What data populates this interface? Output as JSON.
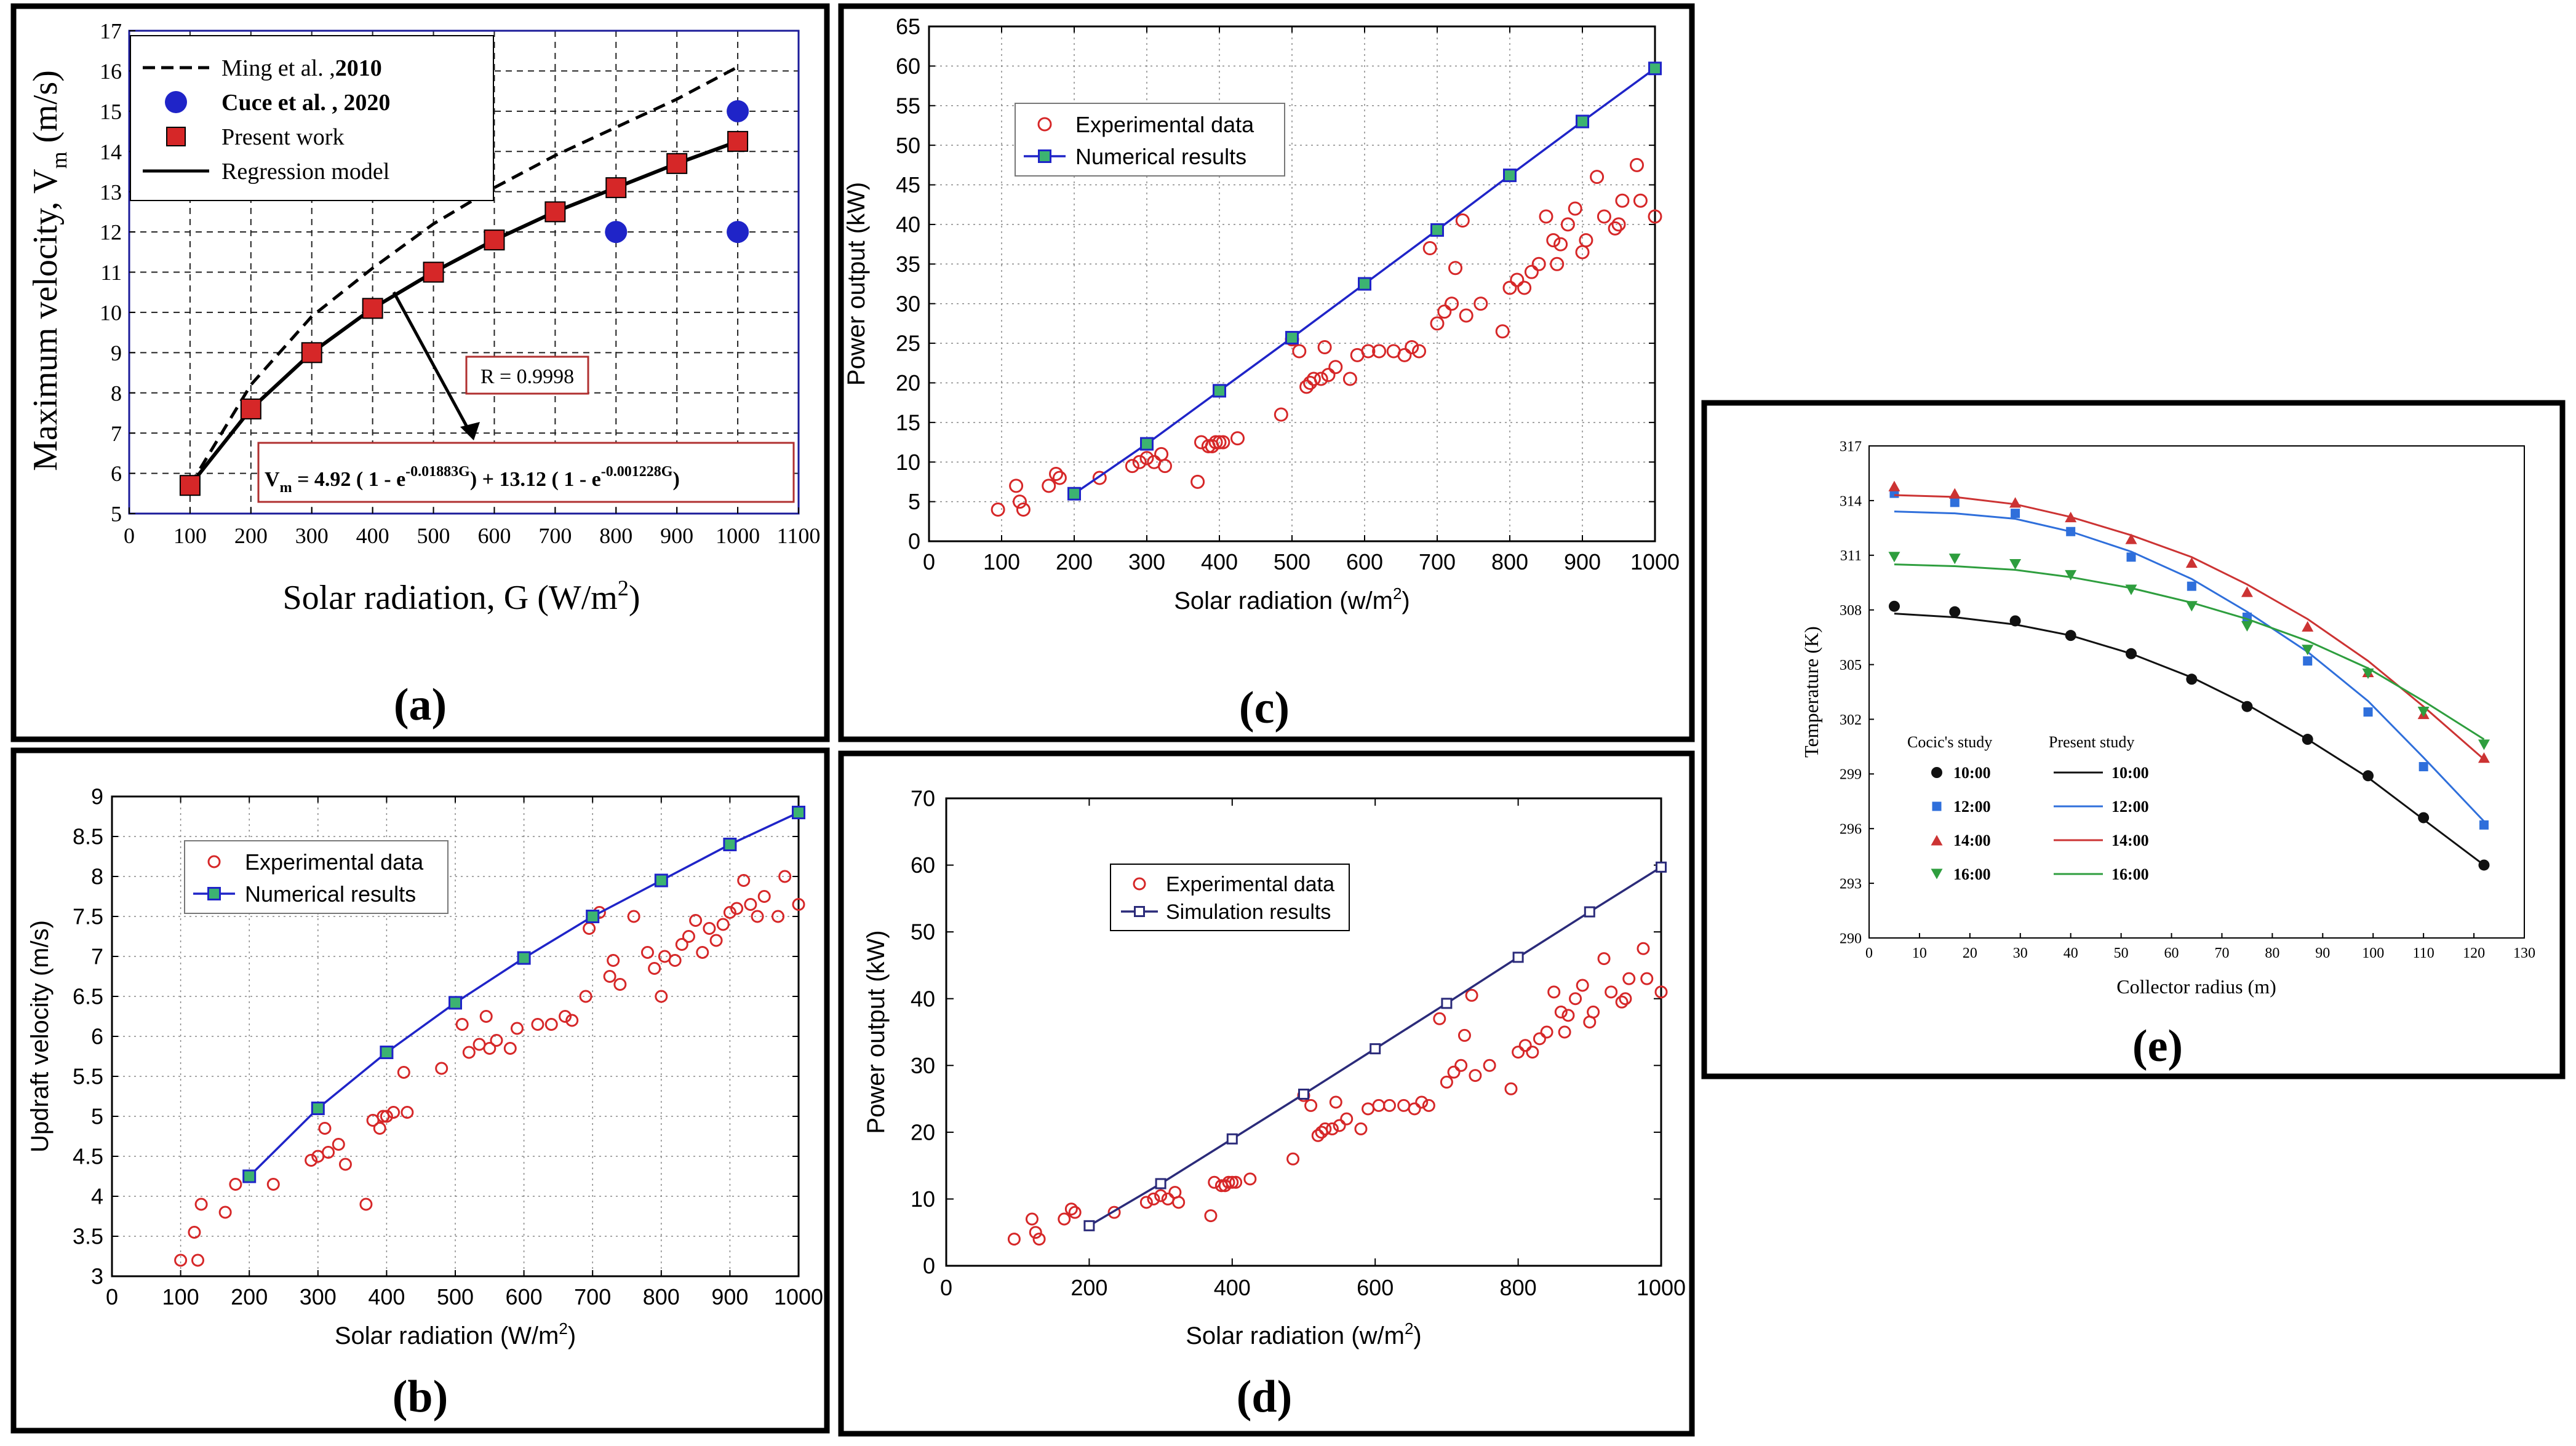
{
  "colors": {
    "red": "#d62728",
    "blue": "#1f24c8",
    "green_fill": "#3cb371",
    "navy": "#2b2b7a",
    "e_red": "#cc3333",
    "e_blue": "#2f6fdb",
    "e_green": "#2e9e3e",
    "e_black": "#111111"
  },
  "chart_data": [
    {
      "id": "a",
      "type": "line",
      "panel_label": "(a)",
      "xlabel": "Solar radiation, G (W/m",
      "xlabel_sup": "2",
      "xlabel_end": ")",
      "ylabel": "Maximum velocity, V",
      "ylabel_sub": "m",
      "ylabel_end": " (m/s)",
      "xlim": [
        0,
        1100
      ],
      "ylim": [
        5,
        17
      ],
      "xticks": [
        "0",
        "100",
        "200",
        "300",
        "400",
        "500",
        "600",
        "700",
        "800",
        "900",
        "1000",
        "1100"
      ],
      "yticks": [
        "5",
        "6",
        "7",
        "8",
        "9",
        "10",
        "11",
        "12",
        "13",
        "14",
        "15",
        "16",
        "17"
      ],
      "grid": true,
      "legend": [
        {
          "label": "Ming et al. ,",
          "bold": "2010",
          "kind": "dashed-line"
        },
        {
          "label": "Cuce et al. , 2020",
          "bold": "",
          "kind": "blue-circle"
        },
        {
          "label": "Present work",
          "bold": "",
          "kind": "red-square"
        },
        {
          "label": "Regression model",
          "bold": "",
          "kind": "solid-line"
        }
      ],
      "series": [
        {
          "name": "Ming et al. ,2010",
          "x": [
            100,
            200,
            300,
            400,
            500,
            600,
            700,
            800,
            900,
            1000
          ],
          "y": [
            5.7,
            8.2,
            9.9,
            11.1,
            12.2,
            13.1,
            13.9,
            14.6,
            15.3,
            16.1
          ]
        },
        {
          "name": "Cuce et al. , 2020",
          "x": [
            800,
            1000,
            1000
          ],
          "y": [
            12.0,
            12.0,
            15.0
          ]
        },
        {
          "name": "Present work",
          "x": [
            100,
            200,
            300,
            400,
            500,
            600,
            700,
            800,
            900,
            1000
          ],
          "y": [
            5.7,
            7.6,
            9.0,
            10.1,
            11.0,
            11.8,
            12.5,
            13.1,
            13.7,
            14.25
          ]
        },
        {
          "name": "Regression model",
          "x": [
            100,
            200,
            300,
            400,
            500,
            600,
            700,
            800,
            900,
            1000
          ],
          "y": [
            5.7,
            7.6,
            9.0,
            10.1,
            11.0,
            11.8,
            12.5,
            13.1,
            13.7,
            14.25
          ]
        }
      ],
      "annotations": {
        "r_value": "R = 0.9998",
        "eq_vm": "V",
        "eq_vm_sub": "m",
        "eq_part1": " = 4.92 ( 1 - e",
        "eq_exp1": "-0.01883G",
        "eq_part2": ") + 13.12 ( 1 - e",
        "eq_exp2": "-0.001228G",
        "eq_part3": ")"
      }
    },
    {
      "id": "b",
      "type": "scatter",
      "panel_label": "(b)",
      "xlabel": "Solar radiation (W/m",
      "xlabel_sup": "2",
      "xlabel_end": ")",
      "ylabel": "Updraft velocity (m/s)",
      "xlim": [
        0,
        1000
      ],
      "ylim": [
        3,
        9
      ],
      "xticks": [
        "0",
        "100",
        "200",
        "300",
        "400",
        "500",
        "600",
        "700",
        "800",
        "900",
        "1000"
      ],
      "yticks": [
        "3",
        "3.5",
        "4",
        "4.5",
        "5",
        "5.5",
        "6",
        "6.5",
        "7",
        "7.5",
        "8",
        "8.5",
        "9"
      ],
      "grid": true,
      "legend": [
        {
          "label": "Experimental data",
          "kind": "red-circle"
        },
        {
          "label": "Numerical results",
          "kind": "blue-line-green-square"
        }
      ],
      "series": [
        {
          "name": "Experimental data",
          "x": [
            100,
            125,
            120,
            130,
            165,
            180,
            235,
            290,
            300,
            310,
            315,
            330,
            340,
            370,
            380,
            390,
            395,
            400,
            410,
            425,
            430,
            480,
            510,
            520,
            535,
            545,
            550,
            560,
            580,
            590,
            620,
            640,
            660,
            670,
            690,
            695,
            710,
            725,
            730,
            740,
            760,
            780,
            790,
            800,
            805,
            820,
            830,
            840,
            850,
            860,
            870,
            880,
            890,
            900,
            910,
            920,
            930,
            940,
            950,
            970,
            980,
            1000
          ],
          "y": [
            3.2,
            3.2,
            3.55,
            3.9,
            3.8,
            4.15,
            4.15,
            4.45,
            4.5,
            4.85,
            4.55,
            4.65,
            4.4,
            3.9,
            4.95,
            4.85,
            5.0,
            5.0,
            5.05,
            5.55,
            5.05,
            5.6,
            6.15,
            5.8,
            5.9,
            6.25,
            5.85,
            5.95,
            5.85,
            6.1,
            6.15,
            6.15,
            6.25,
            6.2,
            6.5,
            7.35,
            7.55,
            6.75,
            6.95,
            6.65,
            7.5,
            7.05,
            6.85,
            6.5,
            7.0,
            6.95,
            7.15,
            7.25,
            7.45,
            7.05,
            7.35,
            7.2,
            7.4,
            7.55,
            7.6,
            7.95,
            7.65,
            7.5,
            7.75,
            7.5,
            8.0,
            7.65
          ]
        },
        {
          "name": "Numerical results",
          "x": [
            200,
            300,
            400,
            500,
            600,
            700,
            800,
            900,
            1000
          ],
          "y": [
            4.25,
            5.1,
            5.8,
            6.42,
            6.98,
            7.5,
            7.95,
            8.4,
            8.8
          ]
        }
      ]
    },
    {
      "id": "c",
      "type": "scatter",
      "panel_label": "(c)",
      "xlabel": "Solar radiation (w/m",
      "xlabel_sup": "2",
      "xlabel_end": ")",
      "ylabel": "Power output (kW)",
      "xlim": [
        0,
        1000
      ],
      "ylim": [
        0,
        65
      ],
      "xticks": [
        "0",
        "100",
        "200",
        "300",
        "400",
        "500",
        "600",
        "700",
        "800",
        "900",
        "1000"
      ],
      "yticks": [
        "0",
        "5",
        "10",
        "15",
        "20",
        "25",
        "30",
        "35",
        "40",
        "45",
        "50",
        "55",
        "60",
        "65"
      ],
      "grid": true,
      "legend": [
        {
          "label": "Experimental data",
          "kind": "red-circle"
        },
        {
          "label": "Numerical results",
          "kind": "blue-line-green-square"
        }
      ],
      "series": [
        {
          "name": "Experimental data",
          "x": [
            95,
            120,
            125,
            130,
            165,
            175,
            180,
            235,
            280,
            290,
            300,
            310,
            320,
            325,
            370,
            375,
            385,
            390,
            395,
            400,
            405,
            425,
            485,
            500,
            510,
            520,
            525,
            530,
            540,
            545,
            550,
            560,
            580,
            590,
            605,
            620,
            640,
            655,
            665,
            675,
            690,
            700,
            710,
            720,
            725,
            735,
            740,
            760,
            790,
            800,
            810,
            820,
            830,
            840,
            850,
            860,
            865,
            870,
            880,
            890,
            900,
            905,
            920,
            930,
            945,
            950,
            955,
            975,
            980,
            1000
          ],
          "y": [
            4,
            7,
            5,
            4,
            7,
            8.5,
            8,
            8,
            9.5,
            10,
            10.5,
            10,
            11,
            9.5,
            7.5,
            12.5,
            12,
            12,
            12.5,
            12.5,
            12.5,
            13,
            16,
            25.5,
            24,
            19.5,
            20,
            20.5,
            20.5,
            24.5,
            21,
            22,
            20.5,
            23.5,
            24,
            24,
            24,
            23.5,
            24.5,
            24,
            37,
            27.5,
            29,
            30,
            34.5,
            40.5,
            28.5,
            30,
            26.5,
            32,
            33,
            32,
            34,
            35,
            41,
            38,
            35,
            37.5,
            40,
            42,
            36.5,
            38,
            46,
            41,
            39.5,
            40,
            43,
            47.5,
            43,
            41
          ]
        },
        {
          "name": "Numerical results",
          "x": [
            200,
            300,
            400,
            500,
            600,
            700,
            800,
            900,
            1000
          ],
          "y": [
            6,
            12.3,
            19,
            25.7,
            32.5,
            39.3,
            46.2,
            53,
            59.7
          ]
        }
      ]
    },
    {
      "id": "d",
      "type": "scatter",
      "panel_label": "(d)",
      "xlabel": "Solar radiation (w/m",
      "xlabel_sup": "2",
      "xlabel_end": ")",
      "ylabel": "Power output (kW)",
      "xlim": [
        0,
        1000
      ],
      "ylim": [
        0,
        70
      ],
      "xticks": [
        "0",
        "200",
        "400",
        "600",
        "800",
        "1000"
      ],
      "yticks": [
        "0",
        "10",
        "20",
        "30",
        "40",
        "50",
        "60",
        "70"
      ],
      "grid": false,
      "legend": [
        {
          "label": "Experimental data",
          "kind": "red-circle"
        },
        {
          "label": "Simulation results",
          "kind": "navy-line-open-square"
        }
      ],
      "series": [
        {
          "name": "Experimental data",
          "x": [
            95,
            120,
            125,
            130,
            165,
            175,
            180,
            235,
            280,
            290,
            300,
            310,
            320,
            325,
            370,
            375,
            385,
            390,
            395,
            400,
            405,
            425,
            485,
            500,
            510,
            520,
            525,
            530,
            540,
            545,
            550,
            560,
            580,
            590,
            605,
            620,
            640,
            655,
            665,
            675,
            690,
            700,
            710,
            720,
            725,
            735,
            740,
            760,
            790,
            800,
            810,
            820,
            830,
            840,
            850,
            860,
            865,
            870,
            880,
            890,
            900,
            905,
            920,
            930,
            945,
            950,
            955,
            975,
            980,
            1000
          ],
          "y": [
            4,
            7,
            5,
            4,
            7,
            8.5,
            8,
            8,
            9.5,
            10,
            10.5,
            10,
            11,
            9.5,
            7.5,
            12.5,
            12,
            12,
            12.5,
            12.5,
            12.5,
            13,
            16,
            25.5,
            24,
            19.5,
            20,
            20.5,
            20.5,
            24.5,
            21,
            22,
            20.5,
            23.5,
            24,
            24,
            24,
            23.5,
            24.5,
            24,
            37,
            27.5,
            29,
            30,
            34.5,
            40.5,
            28.5,
            30,
            26.5,
            32,
            33,
            32,
            34,
            35,
            41,
            38,
            35,
            37.5,
            40,
            42,
            36.5,
            38,
            46,
            41,
            39.5,
            40,
            43,
            47.5,
            43,
            41
          ]
        },
        {
          "name": "Simulation results",
          "x": [
            200,
            300,
            400,
            500,
            600,
            700,
            800,
            900,
            1000
          ],
          "y": [
            6,
            12.3,
            19,
            25.7,
            32.5,
            39.3,
            46.2,
            53,
            59.7
          ]
        }
      ]
    },
    {
      "id": "e",
      "type": "scatter",
      "panel_label": "(e)",
      "xlabel": "Collector radius (m)",
      "ylabel": "Temperature (K)",
      "xlim": [
        0,
        130
      ],
      "ylim": [
        290,
        317
      ],
      "xticks": [
        "0",
        "10",
        "20",
        "30",
        "40",
        "50",
        "60",
        "70",
        "80",
        "90",
        "100",
        "110",
        "120",
        "130"
      ],
      "yticks": [
        "290",
        "293",
        "296",
        "299",
        "302",
        "305",
        "308",
        "311",
        "314",
        "317"
      ],
      "grid": false,
      "legend_headers": [
        "Cocic's study",
        "Present study"
      ],
      "legend": [
        {
          "label": "10:00",
          "kind": "black-circle"
        },
        {
          "label": "12:00",
          "kind": "blue-square"
        },
        {
          "label": "14:00",
          "kind": "red-triangle-up"
        },
        {
          "label": "16:00",
          "kind": "green-triangle-down"
        }
      ],
      "series": [
        {
          "name": "10:00",
          "x": [
            5,
            17,
            29,
            40,
            52,
            64,
            75,
            87,
            99,
            110,
            122
          ],
          "y": [
            308.2,
            307.9,
            307.4,
            306.6,
            305.6,
            304.2,
            302.7,
            300.9,
            298.9,
            296.6,
            294.0
          ],
          "fit_x": [
            5,
            17,
            29,
            40,
            52,
            64,
            75,
            87,
            99,
            110,
            122
          ],
          "fit_y": [
            307.8,
            307.6,
            307.2,
            306.6,
            305.6,
            304.3,
            302.8,
            300.9,
            298.8,
            296.5,
            294.0
          ]
        },
        {
          "name": "12:00",
          "x": [
            5,
            17,
            29,
            40,
            52,
            64,
            75,
            87,
            99,
            110,
            122
          ],
          "y": [
            314.4,
            313.9,
            313.3,
            312.3,
            310.9,
            309.3,
            307.6,
            305.2,
            302.4,
            299.4,
            296.2
          ],
          "fit_x": [
            5,
            17,
            29,
            40,
            52,
            64,
            75,
            87,
            99,
            110,
            122
          ],
          "fit_y": [
            313.4,
            313.3,
            313.0,
            312.3,
            311.2,
            309.7,
            307.9,
            305.7,
            303.0,
            299.9,
            296.4
          ]
        },
        {
          "name": "14:00",
          "x": [
            5,
            17,
            29,
            40,
            52,
            64,
            75,
            87,
            99,
            110,
            122
          ],
          "y": [
            314.8,
            314.4,
            313.9,
            313.1,
            311.9,
            310.6,
            309.0,
            307.1,
            304.6,
            302.3,
            299.9
          ],
          "fit_x": [
            5,
            17,
            29,
            40,
            52,
            64,
            75,
            87,
            99,
            110,
            122
          ],
          "fit_y": [
            314.3,
            314.2,
            313.8,
            313.1,
            312.1,
            310.9,
            309.4,
            307.5,
            305.2,
            302.7,
            299.8
          ]
        },
        {
          "name": "16:00",
          "x": [
            5,
            17,
            29,
            40,
            52,
            64,
            75,
            87,
            99,
            110,
            122
          ],
          "y": [
            310.9,
            310.8,
            310.5,
            309.9,
            309.1,
            308.2,
            307.1,
            305.8,
            304.5,
            302.4,
            300.6
          ],
          "fit_x": [
            5,
            17,
            29,
            40,
            52,
            64,
            75,
            87,
            99,
            110,
            122
          ],
          "fit_y": [
            310.5,
            310.4,
            310.2,
            309.8,
            309.2,
            308.4,
            307.5,
            306.3,
            304.8,
            303.0,
            300.9
          ]
        }
      ]
    }
  ]
}
